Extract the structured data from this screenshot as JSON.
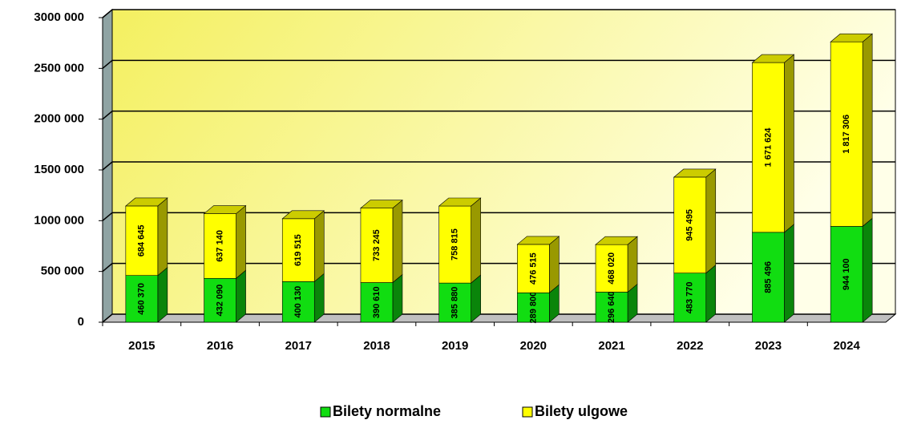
{
  "chart_data": {
    "type": "bar",
    "stacked": true,
    "categories": [
      "2015",
      "2016",
      "2017",
      "2018",
      "2019",
      "2020",
      "2021",
      "2022",
      "2023",
      "2024"
    ],
    "series": [
      {
        "name": "Bilety normalne",
        "color": "#11dd11",
        "values": [
          460370,
          432090,
          400130,
          390610,
          385880,
          289800,
          296640,
          483770,
          885496,
          944100
        ],
        "value_labels": [
          "460 370",
          "432 090",
          "400 130",
          "390 610",
          "385 880",
          "289 800",
          "296 640",
          "483 770",
          "885 496",
          "944 100"
        ]
      },
      {
        "name": "Bilety ulgowe",
        "color": "#ffff00",
        "values": [
          684645,
          637140,
          619515,
          733245,
          758815,
          476515,
          468020,
          945495,
          1671624,
          1817306
        ],
        "value_labels": [
          "684 645",
          "637 140",
          "619 515",
          "733 245",
          "758 815",
          "476 515",
          "468 020",
          "945 495",
          "1 671 624",
          "1 817 306"
        ]
      }
    ],
    "ylim": [
      0,
      3000000
    ],
    "yticks": [
      0,
      {
        "value": 500000,
        "label": "500 000"
      },
      {
        "value": 1000000,
        "label": "1000 000"
      },
      {
        "value": 1500000,
        "label": "1500 000"
      },
      {
        "value": 2000000,
        "label": "2000 000"
      },
      {
        "value": 2500000,
        "label": "2500 000"
      },
      {
        "value": 3000000,
        "label": "3000 000"
      }
    ],
    "grid": true,
    "legend": "bottom"
  }
}
